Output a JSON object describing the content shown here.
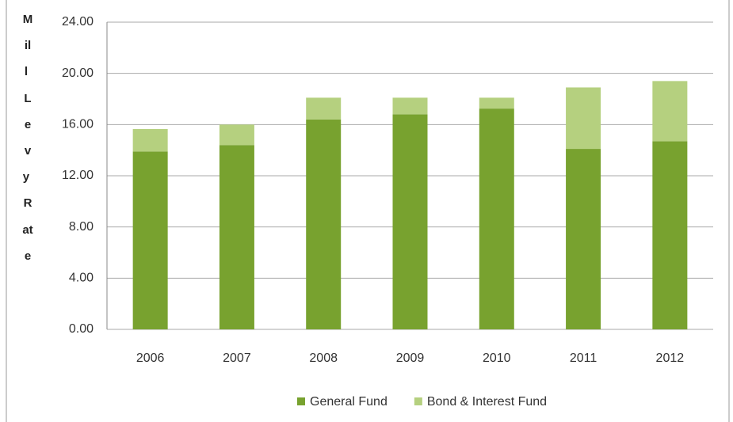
{
  "chart_data": {
    "type": "stacked-bar",
    "y_label": "Mill Levy Rate",
    "categories": [
      "2006",
      "2007",
      "2008",
      "2009",
      "2010",
      "2011",
      "2012"
    ],
    "series": [
      {
        "name": "General Fund",
        "color": "#78a22f",
        "values": [
          13.9,
          14.4,
          16.4,
          16.8,
          17.25,
          14.1,
          14.7
        ]
      },
      {
        "name": "Bond & Interest Fund",
        "color": "#b5d07f",
        "values": [
          1.75,
          1.6,
          1.7,
          1.3,
          0.85,
          4.8,
          4.7
        ]
      }
    ],
    "ylim": [
      0,
      24
    ],
    "yticks": [
      {
        "value": 0,
        "label": "0.00"
      },
      {
        "value": 4,
        "label": "4.00"
      },
      {
        "value": 8,
        "label": "8.00"
      },
      {
        "value": 12,
        "label": "12.00"
      },
      {
        "value": 16,
        "label": "16.00"
      },
      {
        "value": 20,
        "label": "20.00"
      },
      {
        "value": 24,
        "label": "24.00"
      }
    ],
    "grid": true,
    "legend": "bottom"
  }
}
